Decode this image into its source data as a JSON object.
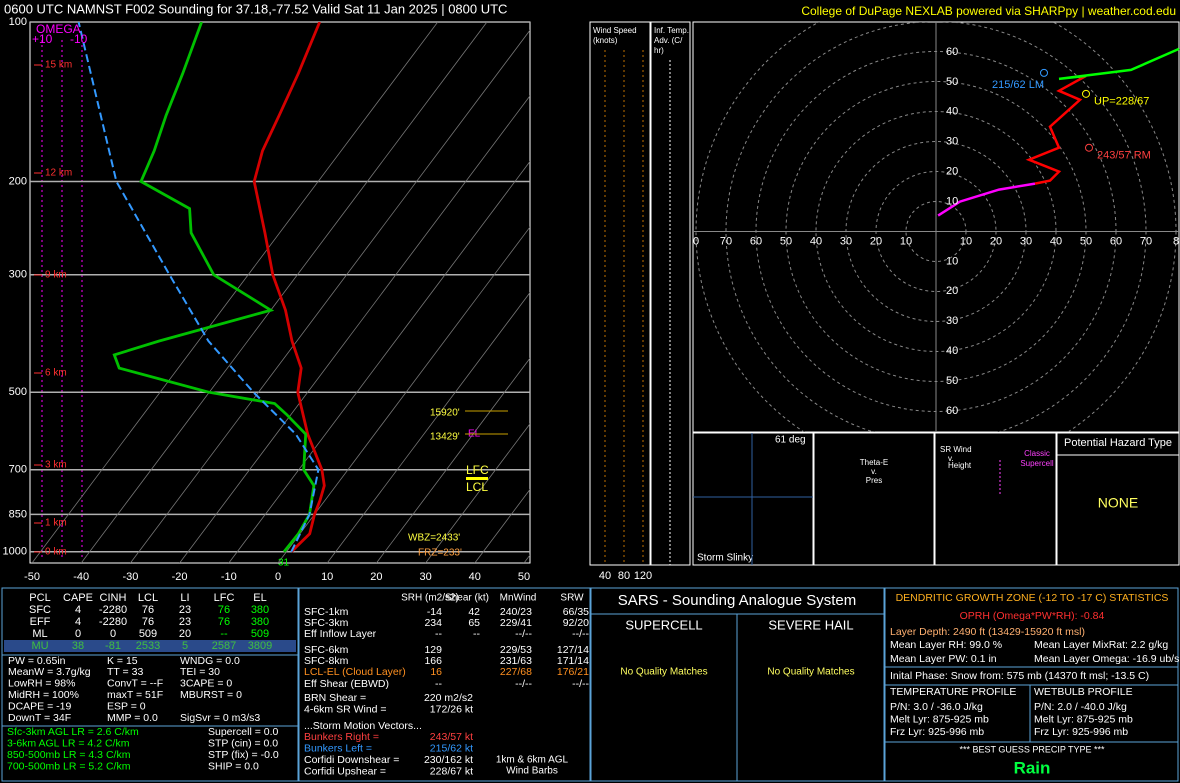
{
  "header": {
    "title": "0600 UTC NAMNST F002 Sounding for 37.18,-77.52  Valid  Sat 11 Jan 2025 | 0800 UTC",
    "credit": "College of DuPage NEXLAB powered via SHARPpy | weather.cod.edu"
  },
  "chart_data": [
    {
      "type": "skewt",
      "yscale": "log",
      "ylim": [
        1050,
        100
      ],
      "yticks": [
        100,
        200,
        300,
        500,
        700,
        850,
        1000
      ],
      "xlim": [
        -50,
        50
      ],
      "xticks": [
        -50,
        -40,
        -30,
        -20,
        -10,
        0,
        10,
        20,
        30,
        40,
        50
      ],
      "grid": true,
      "series": [
        {
          "color": "#d40000",
          "pressure": [
            1000,
            925,
            850,
            800,
            750,
            700,
            600,
            500,
            450,
            400,
            350,
            300,
            250,
            200,
            175,
            150,
            125,
            100
          ],
          "values": [
            1,
            2,
            0,
            -1,
            -2.4,
            -5.3,
            -13.6,
            -22,
            -25,
            -31,
            -37,
            -45,
            -53,
            -63,
            -66,
            -68,
            -70.5,
            -74
          ]
        },
        {
          "color": "#00c000",
          "pressure": [
            1000,
            925,
            850,
            750,
            700,
            600,
            550,
            525,
            500,
            450,
            425,
            400,
            350,
            300,
            250,
            225,
            200,
            175,
            150,
            125,
            100
          ],
          "values": [
            -0.5,
            -0.3,
            -1,
            -4.5,
            -9,
            -14,
            -21,
            -25,
            -40,
            -62,
            -65,
            -58,
            -40,
            -57,
            -68,
            -72,
            -86,
            -88,
            -91,
            -94,
            -98
          ]
        },
        {
          "color": "#3399ff",
          "dashed": true,
          "pressure": [
            1000,
            850,
            700,
            600,
            500,
            400,
            300,
            200,
            100
          ],
          "values": [
            1,
            -1,
            -6,
            -16,
            -31,
            -48,
            -66,
            -91,
            -123
          ]
        }
      ]
    },
    {
      "type": "hodograph",
      "xlim": [
        -80,
        80
      ],
      "ylim": [
        -67,
        70
      ],
      "xticks": [
        {
          "value": -80,
          "label": "0"
        },
        {
          "value": -70,
          "label": "70"
        },
        {
          "value": -60,
          "label": "60"
        },
        {
          "value": -50,
          "label": "50"
        },
        {
          "value": -40,
          "label": "40"
        },
        {
          "value": -30,
          "label": "30"
        },
        {
          "value": -20,
          "label": "20"
        },
        {
          "value": -10,
          "label": "10"
        },
        10,
        20,
        30,
        40,
        50,
        60,
        70,
        {
          "value": 80,
          "label": "8"
        }
      ],
      "yticks": [
        60,
        50,
        40,
        30,
        20,
        10,
        {
          "value": -10,
          "label": "10"
        },
        {
          "value": -20,
          "label": "20"
        },
        {
          "value": -30,
          "label": "30"
        },
        {
          "value": -40,
          "label": "40"
        },
        {
          "value": -50,
          "label": "50"
        },
        {
          "value": -60,
          "label": "60"
        }
      ],
      "series": [
        {
          "color": "#ff00ff",
          "x": [
            0.7,
            8,
            21,
            33
          ],
          "values": [
            5.3,
            10,
            14,
            16
          ]
        },
        {
          "color": "#ff0000",
          "x": [
            33,
            38,
            41,
            31,
            41,
            38,
            48,
            41,
            50
          ],
          "values": [
            16,
            17,
            20,
            24,
            28,
            35,
            44,
            47,
            52
          ]
        },
        {
          "color": "#00ff00",
          "x": [
            50,
            41,
            65,
            81
          ],
          "values": [
            52,
            51,
            54,
            61
          ]
        }
      ],
      "storm_motions": [
        {
          "label": "215/62 LM",
          "color": "#3399ff",
          "u": 36,
          "v": 53
        },
        {
          "label": "UP=228/67",
          "color": "#ffff00",
          "u": 50,
          "v": 46
        },
        {
          "label": "243/57 RM",
          "color": "#ff4040",
          "u": 51,
          "v": 28
        }
      ]
    }
  ],
  "skewt_labels": {
    "omega": [
      "OMEGA",
      "+10",
      "-10"
    ],
    "heights": [
      "15 km",
      "12 km",
      "9 km",
      "6 km",
      "3 km",
      "1 km",
      "0 km"
    ],
    "notes": [
      "15920'",
      "13429'",
      "EL",
      "LFC",
      "LCL",
      "WBZ=2433'",
      "FRZ=233'",
      "31"
    ]
  },
  "wind_panel": {
    "title": [
      "Wind Speed",
      "(knots)"
    ],
    "ticks": [
      "40",
      "80",
      "120"
    ]
  },
  "adv_panel": {
    "title": [
      "Inf. Temp.",
      "Adv. (C/",
      "hr)"
    ]
  },
  "small_panels": {
    "slinky": [
      "61 deg",
      "Storm Slinky"
    ],
    "thetae": [
      "Theta-E",
      "v.",
      "Pres"
    ],
    "srwind": [
      "SR Wind",
      "v.",
      "Height",
      "Classic",
      "Supercell"
    ],
    "hazard": [
      "Potential Hazard Type",
      "NONE"
    ]
  },
  "parcel_table": {
    "header": [
      "PCL",
      "CAPE",
      "CINH",
      "LCL",
      "LI",
      "LFC",
      "EL"
    ],
    "rows": [
      [
        "SFC",
        "4",
        "-2280",
        "76",
        "23",
        "76",
        "380"
      ],
      [
        "EFF",
        "4",
        "-2280",
        "76",
        "23",
        "76",
        "380"
      ],
      [
        "ML",
        "0",
        "0",
        "509",
        "20",
        "--",
        "509"
      ],
      [
        "MU",
        "38",
        "-81",
        "2533",
        "5",
        "2587",
        "3809"
      ]
    ]
  },
  "indices": [
    [
      "PW = 0.65in",
      "K = 15",
      "WNDG = 0.0"
    ],
    [
      "MeanW = 3.7g/kg",
      "TT = 33",
      "TEI = 30"
    ],
    [
      "LowRH = 98%",
      "ConvT = --F",
      "3CAPE = 0"
    ],
    [
      "MidRH = 100%",
      "maxT = 51F",
      "MBURST = 0"
    ],
    [
      "DCAPE = -19",
      "ESP = 0"
    ],
    [
      "DownT = 34F",
      "MMP = 0.0",
      "SigSvr = 0 m3/s3"
    ]
  ],
  "lapse_rates": [
    "Sfc-3km AGL LR = 2.6 C/km",
    "3-6km AGL LR = 4.2 C/km",
    "850-500mb LR = 4.3 C/km",
    "700-500mb LR = 5.2 C/km"
  ],
  "composites": [
    "Supercell = 0.0",
    "STP (cin) = 0.0",
    "STP (fix) = -0.0",
    "SHIP = 0.0"
  ],
  "kinematics": {
    "header": [
      "SRH (m2/s2)",
      "Shear (kt)",
      "MnWind",
      "SRW"
    ],
    "rows": [
      {
        "label": "SFC-1km",
        "srh": "-14",
        "shear": "42",
        "mnwind": "240/23",
        "srw": "66/35"
      },
      {
        "label": "SFC-3km",
        "srh": "234",
        "shear": "65",
        "mnwind": "229/41",
        "srw": "92/20"
      },
      {
        "label": "Eff Inflow Layer",
        "srh": "--",
        "shear": "--",
        "mnwind": "--/--",
        "srw": "--/--"
      },
      {
        "label": "SFC-6km",
        "srh": "129",
        "mnwind": "229/53",
        "srw": "127/14"
      },
      {
        "label": "SFC-8km",
        "srh": "166",
        "mnwind": "231/63",
        "srw": "171/14"
      },
      {
        "label": "LCL-EL (Cloud Layer)",
        "srh": "16",
        "mnwind": "227/68",
        "srw": "176/21"
      },
      {
        "label": "Eff Shear (EBWD)",
        "srh": "--",
        "mnwind": "--/--",
        "srw": "--/--"
      }
    ],
    "pairs": [
      {
        "label": "BRN Shear =",
        "value": "220 m2/s2"
      },
      {
        "label": "4-6km SR Wind =",
        "value": "172/26 kt"
      }
    ],
    "motion_title": "...Storm Motion Vectors...",
    "motions": [
      {
        "label": "Bunkers Right =",
        "value": "243/57 kt"
      },
      {
        "label": "Bunkers Left =",
        "value": "215/62 kt"
      },
      {
        "label": "Corfidi Downshear =",
        "value": "230/162 kt"
      },
      {
        "label": "Corfidi Upshear =",
        "value": "228/67 kt"
      }
    ],
    "barb_note": [
      "1km & 6km AGL",
      "Wind Barbs"
    ]
  },
  "sars": {
    "title": "SARS - Sounding Analogue System",
    "supercell": "SUPERCELL",
    "hail": "SEVERE HAIL",
    "supercell_result": "No Quality Matches",
    "hail_result": "No Quality Matches"
  },
  "dgz": {
    "title": "DENDRITIC GROWTH ZONE (-12 TO -17 C) STATISTICS",
    "oprh": "OPRH (Omega*PW*RH): -0.84",
    "depth": "Layer Depth: 2490 ft (13429-15920 ft msl)",
    "rh": "Mean Layer RH: 99.0 %",
    "mixrat": "Mean Layer MixRat: 2.2 g/kg",
    "pw": "Mean Layer PW: 0.1 in",
    "omega": "Mean Layer Omega: -16.9 ub/s"
  },
  "precip": {
    "initial": "Inital Phase: Snow from: 575 mb (14370 ft msl; -13.5 C)",
    "temp_title": "TEMPERATURE PROFILE",
    "temp": [
      "P/N: 3.0 / -36.0 J/kg",
      "Melt Lyr: 875-925 mb",
      "Frz Lyr: 925-996 mb"
    ],
    "wb_title": "WETBULB PROFILE",
    "wb": [
      "P/N: 2.0 / -40.0 J/kg",
      "Melt Lyr: 875-925 mb",
      "Frz Lyr: 925-996 mb"
    ],
    "best_title": "*** BEST GUESS PRECIP TYPE ***",
    "best": "Rain"
  }
}
